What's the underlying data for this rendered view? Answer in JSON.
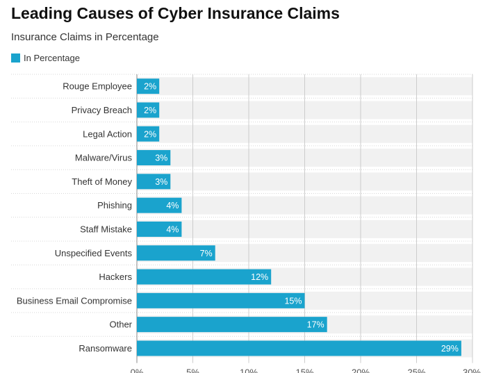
{
  "colors": {
    "bar": "#1aa3cd",
    "track": "#f1f1f1",
    "grid": "#cccccc",
    "text": "#333333",
    "bar_text": "#ffffff"
  },
  "chart_data": {
    "type": "bar",
    "orientation": "horizontal",
    "title": "Leading Causes of Cyber Insurance Claims",
    "subtitle": "Insurance Claims in Percentage",
    "legend": "top-left",
    "grid": true,
    "xlim": [
      0,
      30
    ],
    "xticks": [
      "0%",
      "5%",
      "10%",
      "15%",
      "20%",
      "25%",
      "30%"
    ],
    "categories": [
      "Rouge Employee",
      "Privacy Breach",
      "Legal Action",
      "Malware/Virus",
      "Theft of Money",
      "Phishing",
      "Staff Mistake",
      "Unspecified Events",
      "Hackers",
      "Business Email Compromise",
      "Other",
      "Ransomware"
    ],
    "series": [
      {
        "name": "In Percentage",
        "values": [
          2,
          2,
          2,
          3,
          3,
          4,
          4,
          7,
          12,
          15,
          17,
          29
        ],
        "labels": [
          "2%",
          "2%",
          "2%",
          "3%",
          "3%",
          "4%",
          "4%",
          "7%",
          "12%",
          "15%",
          "17%",
          "29%"
        ]
      }
    ]
  }
}
